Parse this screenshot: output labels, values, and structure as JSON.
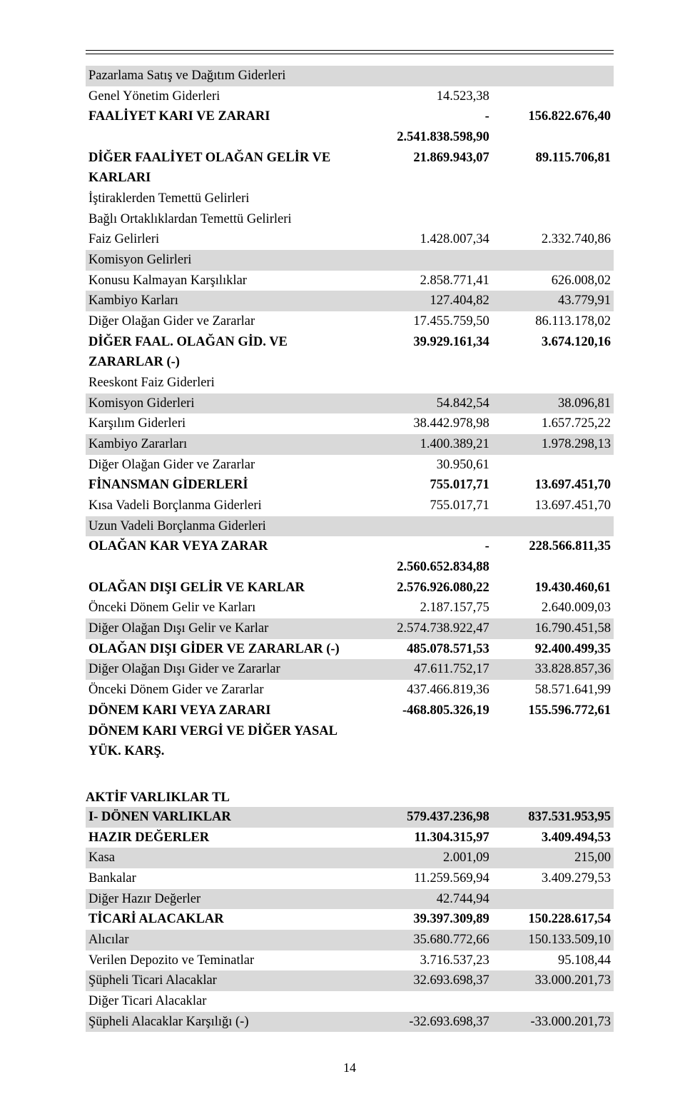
{
  "table1": [
    {
      "label": "Pazarlama Satış ve Dağıtım Giderleri",
      "v1": "",
      "v2": "",
      "gray": true,
      "bold": false
    },
    {
      "label": "Genel Yönetim Giderleri",
      "v1": "14.523,38",
      "v2": "",
      "gray": false,
      "bold": false
    },
    {
      "label": "FAALİYET KARI VE ZARARI",
      "v1": "-2.541.838.598,90",
      "v2": "156.822.676,40",
      "gray": false,
      "bold": true
    },
    {
      "label": "DİĞER FAALİYET OLAĞAN GELİR VE KARLARI",
      "v1": "21.869.943,07",
      "v2": "89.115.706,81",
      "gray": false,
      "bold": true
    },
    {
      "label": "İştiraklerden Temettü Gelirleri",
      "v1": "",
      "v2": "",
      "gray": false,
      "bold": false
    },
    {
      "label": "Bağlı Ortaklıklardan Temettü Gelirleri",
      "v1": "",
      "v2": "",
      "gray": false,
      "bold": false
    },
    {
      "label": "Faiz Gelirleri",
      "v1": "1.428.007,34",
      "v2": "2.332.740,86",
      "gray": false,
      "bold": false
    },
    {
      "label": "Komisyon Gelirleri",
      "v1": "",
      "v2": "",
      "gray": true,
      "bold": false
    },
    {
      "label": "Konusu Kalmayan Karşılıklar",
      "v1": "2.858.771,41",
      "v2": "626.008,02",
      "gray": false,
      "bold": false
    },
    {
      "label": "Kambiyo Karları",
      "v1": "127.404,82",
      "v2": "43.779,91",
      "gray": true,
      "bold": false
    },
    {
      "label": "Diğer Olağan Gider ve Zararlar",
      "v1": "17.455.759,50",
      "v2": "86.113.178,02",
      "gray": false,
      "bold": false
    },
    {
      "label": "DİĞER FAAL. OLAĞAN GİD. VE ZARARLAR (-)",
      "v1": "39.929.161,34",
      "v2": "3.674.120,16",
      "gray": false,
      "bold": true
    },
    {
      "label": "Reeskont Faiz Giderleri",
      "v1": "",
      "v2": "",
      "gray": false,
      "bold": false
    },
    {
      "label": "Komisyon Giderleri",
      "v1": "54.842,54",
      "v2": "38.096,81",
      "gray": true,
      "bold": false
    },
    {
      "label": "Karşılım Giderleri",
      "v1": "38.442.978,98",
      "v2": "1.657.725,22",
      "gray": false,
      "bold": false
    },
    {
      "label": "Kambiyo Zararları",
      "v1": "1.400.389,21",
      "v2": "1.978.298,13",
      "gray": true,
      "bold": false
    },
    {
      "label": "Diğer Olağan Gider ve Zararlar",
      "v1": "30.950,61",
      "v2": "",
      "gray": false,
      "bold": false
    },
    {
      "label": "FİNANSMAN GİDERLERİ",
      "v1": "755.017,71",
      "v2": "13.697.451,70",
      "gray": false,
      "bold": true
    },
    {
      "label": "Kısa Vadeli Borçlanma Giderleri",
      "v1": "755.017,71",
      "v2": "13.697.451,70",
      "gray": false,
      "bold": false
    },
    {
      "label": "Uzun Vadeli Borçlanma Giderleri",
      "v1": "",
      "v2": "",
      "gray": true,
      "bold": false
    },
    {
      "label": "OLAĞAN KAR VEYA ZARAR",
      "v1": "-2.560.652.834,88",
      "v2": "228.566.811,35",
      "gray": false,
      "bold": true
    },
    {
      "label": "OLAĞAN DIŞI GELİR VE KARLAR",
      "v1": "2.576.926.080,22",
      "v2": "19.430.460,61",
      "gray": false,
      "bold": true
    },
    {
      "label": "Önceki Dönem Gelir ve Karları",
      "v1": "2.187.157,75",
      "v2": "2.640.009,03",
      "gray": false,
      "bold": false
    },
    {
      "label": "Diğer Olağan Dışı Gelir ve Karlar",
      "v1": "2.574.738.922,47",
      "v2": "16.790.451,58",
      "gray": true,
      "bold": false
    },
    {
      "label": "OLAĞAN DIŞI GİDER VE ZARARLAR (-)",
      "v1": "485.078.571,53",
      "v2": "92.400.499,35",
      "gray": false,
      "bold": true
    },
    {
      "label": "Diğer Olağan Dışı Gider ve Zararlar",
      "v1": "47.611.752,17",
      "v2": "33.828.857,36",
      "gray": true,
      "bold": false
    },
    {
      "label": "Önceki Dönem Gider ve Zararlar",
      "v1": "437.466.819,36",
      "v2": "58.571.641,99",
      "gray": false,
      "bold": false
    },
    {
      "label": "DÖNEM KARI VEYA ZARARI",
      "v1": "-468.805.326,19",
      "v2": "155.596.772,61",
      "gray": false,
      "bold": true
    },
    {
      "label": "DÖNEM KARI VERGİ VE DİĞER YASAL YÜK. KARŞ.",
      "v1": "",
      "v2": "",
      "gray": false,
      "bold": true
    }
  ],
  "table2_header": "AKTİF VARLIKLAR TL",
  "table2": [
    {
      "label": "I- DÖNEN VARLIKLAR",
      "v1": "579.437.236,98",
      "v2": "837.531.953,95",
      "gray": true,
      "bold": true
    },
    {
      "label": "HAZIR DEĞERLER",
      "v1": "11.304.315,97",
      "v2": "3.409.494,53",
      "gray": false,
      "bold": true
    },
    {
      "label": "Kasa",
      "v1": "2.001,09",
      "v2": "215,00",
      "gray": true,
      "bold": false
    },
    {
      "label": "Bankalar",
      "v1": "11.259.569,94",
      "v2": "3.409.279,53",
      "gray": false,
      "bold": false
    },
    {
      "label": "Diğer Hazır Değerler",
      "v1": "42.744,94",
      "v2": "",
      "gray": true,
      "bold": false
    },
    {
      "label": "TİCARİ ALACAKLAR",
      "v1": "39.397.309,89",
      "v2": "150.228.617,54",
      "gray": false,
      "bold": true
    },
    {
      "label": "Alıcılar",
      "v1": "35.680.772,66",
      "v2": "150.133.509,10",
      "gray": true,
      "bold": false
    },
    {
      "label": "Verilen Depozito ve Teminatlar",
      "v1": "3.716.537,23",
      "v2": "95.108,44",
      "gray": false,
      "bold": false
    },
    {
      "label": "Şüpheli Ticari Alacaklar",
      "v1": "32.693.698,37",
      "v2": "33.000.201,73",
      "gray": true,
      "bold": false
    },
    {
      "label": "Diğer Ticari Alacaklar",
      "v1": "",
      "v2": "",
      "gray": false,
      "bold": false
    },
    {
      "label": "Şüpheli Alacaklar Karşılığı (-)",
      "v1": "-32.693.698,37",
      "v2": "-33.000.201,73",
      "gray": true,
      "bold": false
    }
  ],
  "pageNumber": "14"
}
